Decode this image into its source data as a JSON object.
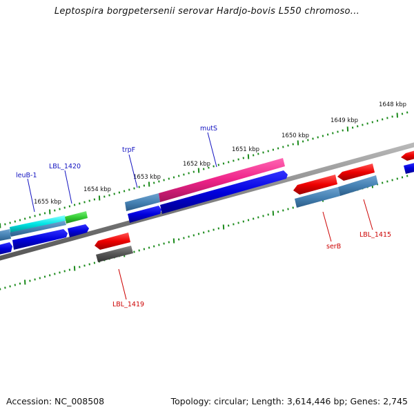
{
  "title": "Leptospira borgpetersenii serovar Hardjo-bovis L550 chromoso...",
  "footer": {
    "accession": "Accession: NC_008508",
    "topology": "Topology: circular; Length: 3,614,446 bp; Genes: 2,745"
  },
  "ruler": [
    {
      "label": "1648 kbp"
    },
    {
      "label": "1649 kbp"
    },
    {
      "label": "1650 kbp"
    },
    {
      "label": "1651 kbp"
    },
    {
      "label": "1652 kbp"
    },
    {
      "label": "1653 kbp"
    },
    {
      "label": "1654 kbp"
    },
    {
      "label": "1655 kbp"
    }
  ],
  "gene_labels": [
    {
      "name": "leuB-1",
      "color": "#1010c0"
    },
    {
      "name": "LBL_1420",
      "color": "#1010c0"
    },
    {
      "name": "trpF",
      "color": "#1010c0"
    },
    {
      "name": "mutS",
      "color": "#1010c0"
    },
    {
      "name": "LBL_1419",
      "color": "#cc0000"
    },
    {
      "name": "serB",
      "color": "#cc0000"
    },
    {
      "name": "LBL_1415",
      "color": "#cc0000"
    }
  ],
  "colors": {
    "backbone": "#808080",
    "forward_cds": "#0000dd",
    "reverse_cds": "#ee0000",
    "steelblue_feature": "#4682b4",
    "cyan_feature": "#00e5e5",
    "green_feature": "#33cc33",
    "magenta_feature": "#ee2288",
    "grey_feature": "#555555",
    "tick": "#1a8a1a"
  }
}
